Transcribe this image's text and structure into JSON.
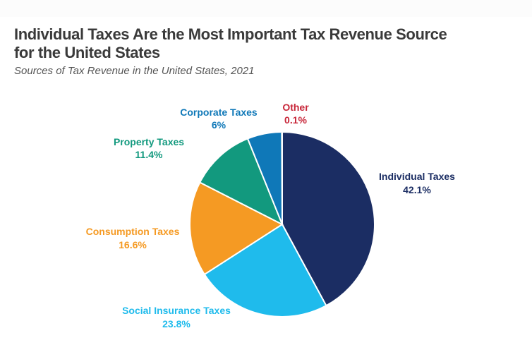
{
  "header": {
    "title": "Individual Taxes Are the Most Important Tax Revenue Source for the United States",
    "subtitle": "Sources of Tax Revenue in the United States, 2021"
  },
  "chart_data": {
    "type": "pie",
    "title": "Individual Taxes Are the Most Important Tax Revenue Source for the United States",
    "subtitle": "Sources of Tax Revenue in the United States, 2021",
    "start": "12 o'clock",
    "direction": "clockwise",
    "slices": [
      {
        "name": "Individual Taxes",
        "value": 42.1,
        "label": "42.1%",
        "color": "#1b2d63"
      },
      {
        "name": "Social Insurance Taxes",
        "value": 23.8,
        "label": "23.8%",
        "color": "#1fbbec"
      },
      {
        "name": "Consumption Taxes",
        "value": 16.6,
        "label": "16.6%",
        "color": "#f59a23"
      },
      {
        "name": "Property Taxes",
        "value": 11.4,
        "label": "11.4%",
        "color": "#12997e"
      },
      {
        "name": "Corporate Taxes",
        "value": 6.0,
        "label": "6%",
        "color": "#0f78b8"
      },
      {
        "name": "Other",
        "value": 0.1,
        "label": "0.1%",
        "color": "#8a8f9c",
        "label_color": "#c8273a"
      }
    ]
  }
}
